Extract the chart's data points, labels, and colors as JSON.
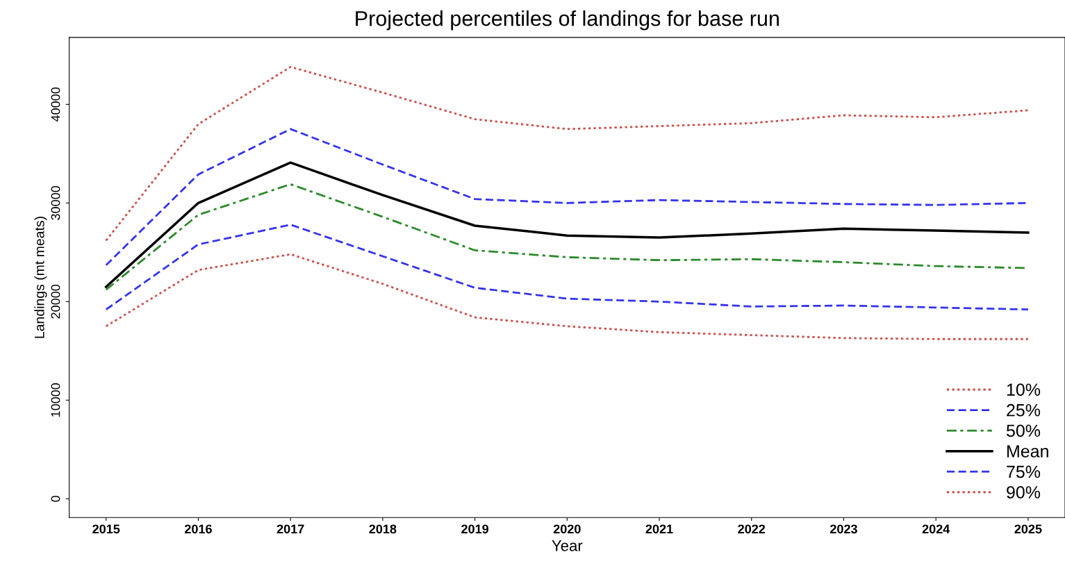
{
  "chart_data": {
    "type": "line",
    "title": "Projected percentiles of landings for base run",
    "xlabel": "Year",
    "ylabel": "Landings (mt meats)",
    "x": [
      2015,
      2016,
      2017,
      2018,
      2019,
      2020,
      2021,
      2022,
      2023,
      2024,
      2025
    ],
    "xlim": [
      2014.6,
      2025.4
    ],
    "xticks": [
      2015,
      2016,
      2017,
      2018,
      2019,
      2020,
      2021,
      2022,
      2023,
      2024,
      2025
    ],
    "ylim": [
      -1900,
      46800
    ],
    "yticks": [
      0,
      10000,
      20000,
      30000,
      40000
    ],
    "grid": false,
    "legend": "bottom right",
    "marker": "none",
    "series": [
      {
        "name": "10%",
        "color": "#c8504b",
        "line_style": "dotted",
        "values": [
          17500,
          23200,
          24800,
          21800,
          18400,
          17500,
          16900,
          16600,
          16300,
          16200,
          16200
        ]
      },
      {
        "name": "25%",
        "color": "#3333ee",
        "line_style": "dashed",
        "values": [
          19200,
          25800,
          27800,
          24600,
          21400,
          20300,
          20000,
          19500,
          19600,
          19400,
          19200
        ]
      },
      {
        "name": "50%",
        "color": "#2a8a2a",
        "line_style": "dashdot",
        "values": [
          21200,
          28800,
          31900,
          28600,
          25200,
          24500,
          24200,
          24300,
          24000,
          23600,
          23400
        ]
      },
      {
        "name": "Mean",
        "color": "#000000",
        "line_style": "solid",
        "values": [
          21500,
          30000,
          34100,
          30800,
          27700,
          26700,
          26500,
          26900,
          27400,
          27200,
          27000
        ]
      },
      {
        "name": "75%",
        "color": "#3333ee",
        "line_style": "dashed",
        "values": [
          23700,
          32900,
          37500,
          33900,
          30400,
          30000,
          30300,
          30100,
          29900,
          29800,
          30000
        ]
      },
      {
        "name": "90%",
        "color": "#c8504b",
        "line_style": "dotted",
        "values": [
          26200,
          38000,
          43800,
          41200,
          38500,
          37500,
          37800,
          38100,
          38900,
          38700,
          39400
        ]
      }
    ]
  }
}
